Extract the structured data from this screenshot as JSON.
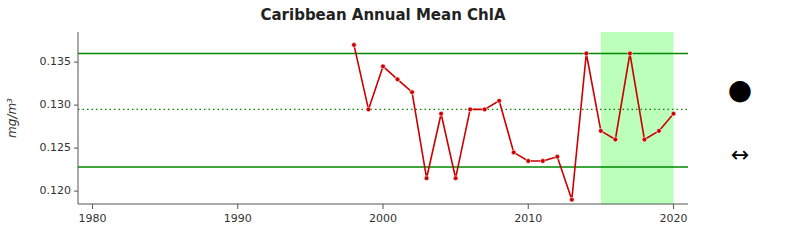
{
  "chart_data": {
    "type": "line",
    "title": "Caribbean Annual Mean ChlA",
    "y_label": "mg/m³",
    "x": [
      1998,
      1999,
      2000,
      2001,
      2002,
      2003,
      2004,
      2005,
      2006,
      2007,
      2008,
      2009,
      2010,
      2011,
      2012,
      2013,
      2014,
      2015,
      2016,
      2017,
      2018,
      2019,
      2020
    ],
    "values": [
      0.137,
      0.1295,
      0.1345,
      0.133,
      0.1315,
      0.1215,
      0.129,
      0.1215,
      0.1295,
      0.1295,
      0.1305,
      0.1245,
      0.1235,
      0.1235,
      0.124,
      0.119,
      0.136,
      0.127,
      0.126,
      0.136,
      0.126,
      0.127,
      0.129
    ],
    "color": "#cc0000",
    "marker": "circle",
    "xlim": [
      1979,
      2021
    ],
    "ylim": [
      0.1185,
      0.1385
    ],
    "xticks": [
      1980,
      1990,
      2000,
      2010,
      2020
    ],
    "yticks": [
      {
        "value": 0.12,
        "label": "0.120"
      },
      0.125,
      {
        "value": 0.13,
        "label": "0.130"
      },
      0.135
    ],
    "hlines": [
      {
        "value": 0.136,
        "color": "#008800",
        "line_style": "solid"
      },
      {
        "value": 0.1228,
        "color": "#008800",
        "line_style": "solid"
      },
      {
        "value": 0.1295,
        "color": "#008800",
        "line_style": "dotted"
      }
    ],
    "shade": {
      "x": [
        2015,
        2020
      ],
      "color": "#bbffbb"
    },
    "annotations": [
      "●",
      "↔"
    ]
  }
}
